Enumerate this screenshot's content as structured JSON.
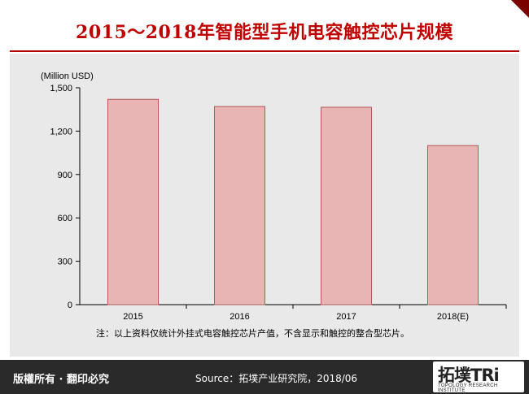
{
  "header": {
    "title": "2015～2018年智能型手机电容触控芯片规模"
  },
  "chart_data": {
    "type": "bar",
    "title": "2015～2018年智能型手机电容触控芯片规模",
    "ylabel": "(Million USD)",
    "xlabel": "",
    "categories": [
      "2015",
      "2016",
      "2017",
      "2018(E)"
    ],
    "values": [
      1420,
      1370,
      1365,
      1100
    ],
    "ylim": [
      0,
      1500
    ],
    "yticks": [
      "0",
      "300",
      "600",
      "900",
      "1,200",
      "1,500"
    ],
    "grid": false,
    "bar_color": "#e8b4b4",
    "bar_border_color": "#b05a5a"
  },
  "footnote": "注：以上资料仅统计外挂式电容触控芯片产值，不含显示和触控的整合型芯片。",
  "footer": {
    "rights": "版權所有 · 翻印必究",
    "source": "Source：拓墣产业研究院，2018/06",
    "logo_main": "拓墣TRi",
    "logo_sub": "TOPOLOGY RESEARCH INSTITUTE"
  },
  "colors": {
    "title": "#c00000",
    "accent_rule": "#b00000",
    "footer_bg": "#2a2a2a",
    "panel_bg": "#e9e9e9"
  }
}
